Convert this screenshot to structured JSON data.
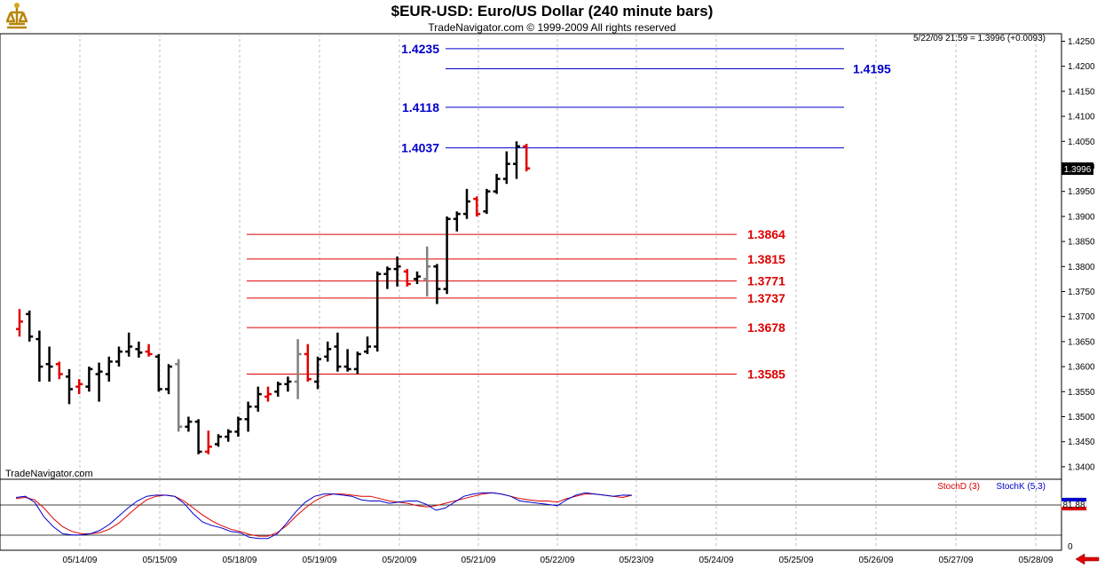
{
  "header": {
    "title": "$EUR-USD:  Euro/US Dollar  (240 minute bars)",
    "subtitle": "TradeNavigator.com © 1999-2009 All rights reserved"
  },
  "price_panel": {
    "last_quote": "5/22/09 21:59 = 1.3996 (+0.0093)",
    "watermark": "TradeNavigator.com",
    "price_marker": "1.3996",
    "y_ticks": [
      "1.3400",
      "1.3450",
      "1.3500",
      "1.3550",
      "1.3600",
      "1.3650",
      "1.3700",
      "1.3750",
      "1.3800",
      "1.3850",
      "1.3900",
      "1.3950",
      "1.4000",
      "1.4050",
      "1.4100",
      "1.4150",
      "1.4200",
      "1.4250"
    ]
  },
  "stoch_panel": {
    "stochd_label": "StochD (3)",
    "stochk_label": "StochK (5,3)",
    "marker_value": "81.88",
    "y_tick_zero": "0"
  },
  "x_ticks": [
    "05/14/09",
    "05/15/09",
    "05/18/09",
    "05/19/09",
    "05/20/09",
    "05/21/09",
    "05/22/09",
    "05/23/09",
    "05/24/09",
    "05/25/09",
    "05/26/09",
    "05/27/09",
    "05/28/09"
  ],
  "colors": {
    "up_bar": "#000000",
    "down_bar": "#e00000",
    "neutral_bar": "#808080",
    "resistance": "#0000cc",
    "support": "#dd0000",
    "stoch_d": "#dd0000",
    "stoch_k": "#0000cc"
  },
  "chart_data": [
    {
      "type": "ohlc",
      "title": "$EUR-USD:  Euro/US Dollar  (240 minute bars)",
      "ylim": [
        1.3375,
        1.4265
      ],
      "ohlc": [
        {
          "o": 1.3675,
          "h": 1.3715,
          "l": 1.366,
          "c": 1.369,
          "col": "down"
        },
        {
          "o": 1.3705,
          "h": 1.3712,
          "l": 1.365,
          "c": 1.366,
          "col": "up"
        },
        {
          "o": 1.3655,
          "h": 1.3672,
          "l": 1.357,
          "c": 1.36,
          "col": "up"
        },
        {
          "o": 1.3605,
          "h": 1.364,
          "l": 1.357,
          "c": 1.36,
          "col": "up"
        },
        {
          "o": 1.3605,
          "h": 1.361,
          "l": 1.3575,
          "c": 1.3585,
          "col": "down"
        },
        {
          "o": 1.358,
          "h": 1.3595,
          "l": 1.3525,
          "c": 1.3555,
          "col": "up"
        },
        {
          "o": 1.356,
          "h": 1.3575,
          "l": 1.3545,
          "c": 1.3565,
          "col": "down"
        },
        {
          "o": 1.356,
          "h": 1.36,
          "l": 1.355,
          "c": 1.3595,
          "col": "up"
        },
        {
          "o": 1.3585,
          "h": 1.3608,
          "l": 1.353,
          "c": 1.359,
          "col": "up"
        },
        {
          "o": 1.3585,
          "h": 1.362,
          "l": 1.357,
          "c": 1.361,
          "col": "up"
        },
        {
          "o": 1.361,
          "h": 1.364,
          "l": 1.36,
          "c": 1.363,
          "col": "up"
        },
        {
          "o": 1.363,
          "h": 1.3668,
          "l": 1.362,
          "c": 1.364,
          "col": "up"
        },
        {
          "o": 1.3635,
          "h": 1.365,
          "l": 1.3618,
          "c": 1.3628,
          "col": "up"
        },
        {
          "o": 1.363,
          "h": 1.3645,
          "l": 1.362,
          "c": 1.3625,
          "col": "down"
        },
        {
          "o": 1.362,
          "h": 1.3625,
          "l": 1.355,
          "c": 1.3555,
          "col": "up"
        },
        {
          "o": 1.3555,
          "h": 1.3605,
          "l": 1.3545,
          "c": 1.36,
          "col": "up"
        },
        {
          "o": 1.3605,
          "h": 1.3615,
          "l": 1.347,
          "c": 1.348,
          "col": "neutral"
        },
        {
          "o": 1.348,
          "h": 1.35,
          "l": 1.347,
          "c": 1.349,
          "col": "up"
        },
        {
          "o": 1.349,
          "h": 1.3495,
          "l": 1.3425,
          "c": 1.343,
          "col": "up"
        },
        {
          "o": 1.343,
          "h": 1.3472,
          "l": 1.3425,
          "c": 1.344,
          "col": "down"
        },
        {
          "o": 1.3445,
          "h": 1.3465,
          "l": 1.344,
          "c": 1.346,
          "col": "up"
        },
        {
          "o": 1.346,
          "h": 1.3475,
          "l": 1.345,
          "c": 1.347,
          "col": "up"
        },
        {
          "o": 1.347,
          "h": 1.35,
          "l": 1.346,
          "c": 1.3495,
          "col": "up"
        },
        {
          "o": 1.3495,
          "h": 1.353,
          "l": 1.347,
          "c": 1.352,
          "col": "up"
        },
        {
          "o": 1.352,
          "h": 1.356,
          "l": 1.351,
          "c": 1.3545,
          "col": "up"
        },
        {
          "o": 1.354,
          "h": 1.356,
          "l": 1.353,
          "c": 1.3545,
          "col": "down"
        },
        {
          "o": 1.355,
          "h": 1.357,
          "l": 1.354,
          "c": 1.3565,
          "col": "up"
        },
        {
          "o": 1.3565,
          "h": 1.358,
          "l": 1.355,
          "c": 1.357,
          "col": "up"
        },
        {
          "o": 1.357,
          "h": 1.3655,
          "l": 1.3535,
          "c": 1.3625,
          "col": "neutral"
        },
        {
          "o": 1.3625,
          "h": 1.3645,
          "l": 1.357,
          "c": 1.3575,
          "col": "down"
        },
        {
          "o": 1.357,
          "h": 1.362,
          "l": 1.3555,
          "c": 1.3615,
          "col": "up"
        },
        {
          "o": 1.362,
          "h": 1.365,
          "l": 1.361,
          "c": 1.3635,
          "col": "up"
        },
        {
          "o": 1.364,
          "h": 1.3668,
          "l": 1.359,
          "c": 1.36,
          "col": "up"
        },
        {
          "o": 1.36,
          "h": 1.3635,
          "l": 1.359,
          "c": 1.3595,
          "col": "up"
        },
        {
          "o": 1.3595,
          "h": 1.363,
          "l": 1.3585,
          "c": 1.3625,
          "col": "up"
        },
        {
          "o": 1.363,
          "h": 1.366,
          "l": 1.3625,
          "c": 1.364,
          "col": "up"
        },
        {
          "o": 1.364,
          "h": 1.379,
          "l": 1.363,
          "c": 1.3785,
          "col": "up"
        },
        {
          "o": 1.3785,
          "h": 1.38,
          "l": 1.3755,
          "c": 1.3795,
          "col": "up"
        },
        {
          "o": 1.3795,
          "h": 1.382,
          "l": 1.376,
          "c": 1.38,
          "col": "up"
        },
        {
          "o": 1.379,
          "h": 1.3795,
          "l": 1.376,
          "c": 1.3765,
          "col": "down"
        },
        {
          "o": 1.3775,
          "h": 1.379,
          "l": 1.3765,
          "c": 1.378,
          "col": "up"
        },
        {
          "o": 1.3775,
          "h": 1.384,
          "l": 1.374,
          "c": 1.38,
          "col": "neutral"
        },
        {
          "o": 1.38,
          "h": 1.3805,
          "l": 1.3725,
          "c": 1.3755,
          "col": "up"
        },
        {
          "o": 1.3755,
          "h": 1.39,
          "l": 1.3745,
          "c": 1.3895,
          "col": "up"
        },
        {
          "o": 1.3895,
          "h": 1.391,
          "l": 1.387,
          "c": 1.3905,
          "col": "up"
        },
        {
          "o": 1.3905,
          "h": 1.3955,
          "l": 1.3895,
          "c": 1.393,
          "col": "up"
        },
        {
          "o": 1.3935,
          "h": 1.394,
          "l": 1.39,
          "c": 1.3905,
          "col": "down"
        },
        {
          "o": 1.391,
          "h": 1.3955,
          "l": 1.3905,
          "c": 1.395,
          "col": "up"
        },
        {
          "o": 1.395,
          "h": 1.3985,
          "l": 1.3945,
          "c": 1.3975,
          "col": "up"
        },
        {
          "o": 1.3975,
          "h": 1.403,
          "l": 1.3965,
          "c": 1.4005,
          "col": "up"
        },
        {
          "o": 1.4005,
          "h": 1.405,
          "l": 1.3975,
          "c": 1.404,
          "col": "up"
        },
        {
          "o": 1.404,
          "h": 1.4045,
          "l": 1.399,
          "c": 1.3996,
          "col": "down"
        }
      ],
      "levels": [
        {
          "value": 1.4235,
          "label": "1.4235",
          "side": "left",
          "color": "blue"
        },
        {
          "value": 1.4195,
          "label": "1.4195",
          "side": "right",
          "color": "blue"
        },
        {
          "value": 1.4118,
          "label": "1.4118",
          "side": "left",
          "color": "blue"
        },
        {
          "value": 1.4037,
          "label": "1.4037",
          "side": "left",
          "color": "blue"
        },
        {
          "value": 1.3864,
          "label": "1.3864",
          "side": "right",
          "color": "red"
        },
        {
          "value": 1.3815,
          "label": "1.3815",
          "side": "right",
          "color": "red"
        },
        {
          "value": 1.3771,
          "label": "1.3771",
          "side": "right",
          "color": "red"
        },
        {
          "value": 1.3737,
          "label": "1.3737",
          "side": "right",
          "color": "red"
        },
        {
          "value": 1.3678,
          "label": "1.3678",
          "side": "right",
          "color": "red"
        },
        {
          "value": 1.3585,
          "label": "1.3585",
          "side": "right",
          "color": "red"
        }
      ]
    },
    {
      "type": "line",
      "ylim": [
        0,
        100
      ],
      "reference_lines": [
        80,
        20
      ],
      "series": [
        {
          "name": "StochD (3)",
          "values": [
            76,
            78,
            74,
            60,
            42,
            28,
            20,
            16,
            16,
            18,
            24,
            34,
            48,
            62,
            74,
            80,
            82,
            80,
            72,
            60,
            48,
            38,
            30,
            24,
            20,
            15,
            12,
            12,
            18,
            30,
            46,
            60,
            72,
            80,
            84,
            84,
            82,
            80,
            80,
            76,
            72,
            70,
            68,
            64,
            62,
            64,
            68,
            72,
            76,
            80,
            84,
            86,
            84,
            80,
            76,
            74,
            72,
            72,
            70,
            76,
            80,
            84,
            84,
            82,
            80,
            78,
            81.88
          ]
        },
        {
          "name": "StochK (5,3)",
          "values": [
            78,
            80,
            70,
            45,
            28,
            16,
            14,
            14,
            16,
            22,
            32,
            46,
            60,
            72,
            80,
            82,
            82,
            80,
            68,
            50,
            36,
            30,
            26,
            20,
            18,
            10,
            8,
            8,
            16,
            34,
            54,
            70,
            80,
            84,
            84,
            82,
            80,
            74,
            72,
            72,
            68,
            70,
            72,
            72,
            66,
            56,
            60,
            70,
            80,
            84,
            86,
            86,
            84,
            80,
            72,
            70,
            68,
            66,
            64,
            74,
            82,
            86,
            84,
            82,
            80,
            82,
            81.88
          ]
        }
      ]
    }
  ]
}
